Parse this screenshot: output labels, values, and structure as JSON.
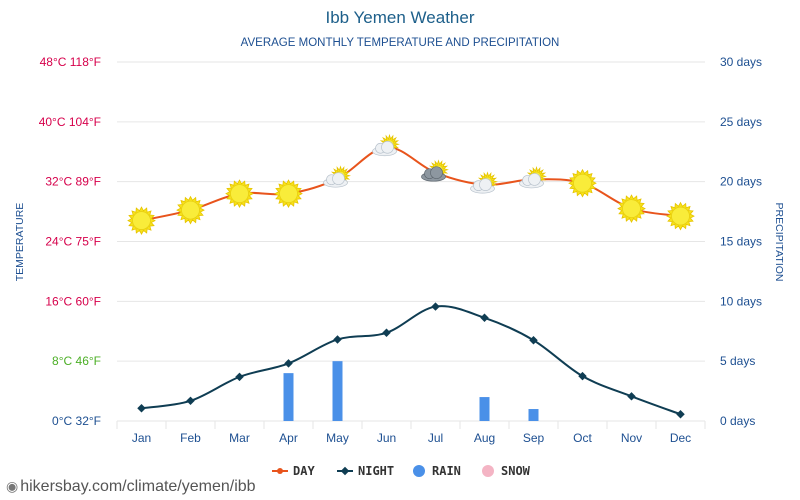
{
  "chart_data": {
    "type": "line",
    "title": "Ibb Yemen Weather",
    "subtitle": "AVERAGE MONTHLY TEMPERATURE AND PRECIPITATION",
    "left_axis_label": "TEMPERATURE",
    "right_axis_label": "PRECIPITATION",
    "categories": [
      "Jan",
      "Feb",
      "Mar",
      "Apr",
      "May",
      "Jun",
      "Jul",
      "Aug",
      "Sep",
      "Oct",
      "Nov",
      "Dec"
    ],
    "temp_ylim": [
      0,
      48
    ],
    "precip_ylim": [
      0,
      30
    ],
    "left_ticks": [
      {
        "value": 0,
        "label": "0°C 32°F",
        "color": "#1d4f91"
      },
      {
        "value": 8,
        "label": "8°C 46°F",
        "color": "#4caf26"
      },
      {
        "value": 16,
        "label": "16°C 60°F",
        "color": "#d6004b"
      },
      {
        "value": 24,
        "label": "24°C 75°F",
        "color": "#d6004b"
      },
      {
        "value": 32,
        "label": "32°C 89°F",
        "color": "#d6004b"
      },
      {
        "value": 40,
        "label": "40°C 104°F",
        "color": "#d6004b"
      },
      {
        "value": 48,
        "label": "48°C 118°F",
        "color": "#d6004b"
      }
    ],
    "right_ticks": [
      {
        "value": 0,
        "label": "0 days"
      },
      {
        "value": 5,
        "label": "5 days"
      },
      {
        "value": 10,
        "label": "10 days"
      },
      {
        "value": 15,
        "label": "15 days"
      },
      {
        "value": 20,
        "label": "20 days"
      },
      {
        "value": 25,
        "label": "25 days"
      },
      {
        "value": 30,
        "label": "30 days"
      }
    ],
    "series": [
      {
        "name": "DAY",
        "color": "#e8541c",
        "values": [
          26.8,
          28.2,
          30.4,
          30.4,
          32.4,
          36.6,
          33.2,
          31.6,
          32.3,
          31.8,
          28.4,
          27.4
        ]
      },
      {
        "name": "NIGHT",
        "color": "#0f3d53",
        "values": [
          1.7,
          2.7,
          5.9,
          7.7,
          10.9,
          11.8,
          15.3,
          13.8,
          10.8,
          6.0,
          3.3,
          0.9
        ]
      },
      {
        "name": "RAIN",
        "color": "#4a90e8",
        "values": [
          0,
          0,
          0,
          4,
          5,
          0,
          0,
          2,
          1,
          0,
          0,
          0
        ]
      },
      {
        "name": "SNOW",
        "color": "#f4b4c4",
        "values": [
          0,
          0,
          0,
          0,
          0,
          0,
          0,
          0,
          0,
          0,
          0,
          0
        ]
      }
    ],
    "weather_icons": [
      "sun-icon",
      "sun-icon",
      "sun-icon",
      "sun-icon",
      "partly-cloudy-icon",
      "partly-cloudy-icon",
      "cloudy-sun-icon",
      "partly-cloudy-icon",
      "partly-cloudy-icon",
      "sun-icon",
      "sun-icon",
      "sun-icon"
    ],
    "grid": true,
    "legend_placement": "bottom-center",
    "colors": {
      "title": "#1d5f8a",
      "subtitle": "#1d4f91",
      "right_tick": "#1d4f91",
      "month_label": "#1d4f91",
      "axis_label": "#1d4f91",
      "grid": "#e6e6e6"
    }
  },
  "watermark": "hikersbay.com/climate/yemen/ibb"
}
